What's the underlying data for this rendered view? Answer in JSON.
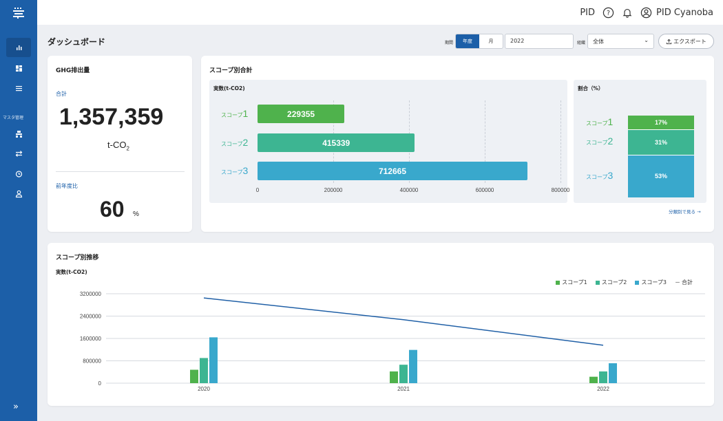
{
  "app": {
    "brand": "PID",
    "user": "PID Cyanoba"
  },
  "sidebar": {
    "section_label": "マスタ管理",
    "icons": [
      "bar-chart-icon",
      "dashboard-icon",
      "list-icon",
      "building-icon",
      "transfer-icon",
      "clock-icon",
      "user-icon"
    ]
  },
  "header": {
    "title": "ダッシュボード",
    "period_label": "期間",
    "period_options": [
      "年度",
      "月"
    ],
    "period_selected": "年度",
    "year_value": "2022",
    "org_label": "組織",
    "org_value": "全体",
    "export_label": "エクスポート"
  },
  "ghg": {
    "title": "GHG排出量",
    "total_label": "合計",
    "total_value": "1,357,359",
    "unit": "t-CO",
    "unit_sub": "2",
    "yoy_label": "前年度比",
    "yoy_value": "60",
    "yoy_unit": "%"
  },
  "scope_total": {
    "title": "スコープ別合計",
    "panel_title": "実数(t-CO2)",
    "ratio_title": "割合（%）",
    "scope_prefix": "スコープ",
    "link": "分類別で見る →",
    "colors": {
      "scope1": "#4fb24c",
      "scope2": "#3db592",
      "scope3": "#39a8cc"
    }
  },
  "trend": {
    "title": "スコープ別推移",
    "subtitle": "実数(t-CO2)"
  },
  "chart_data": [
    {
      "type": "bar",
      "orientation": "horizontal",
      "categories": [
        "1",
        "2",
        "3"
      ],
      "values": [
        229355,
        415339,
        712665
      ],
      "data_labels": [
        "229355",
        "415339",
        "712665"
      ],
      "title": "実数(t-CO2)",
      "xlim": [
        0,
        800000
      ],
      "x_ticks": [
        "0",
        "200000",
        "400000",
        "600000",
        "800000"
      ],
      "grid": true
    },
    {
      "type": "bar",
      "orientation": "stacked",
      "categories": [
        "1",
        "2",
        "3"
      ],
      "values": [
        17,
        31,
        53
      ],
      "data_labels": [
        "17%",
        "31%",
        "53%"
      ],
      "title": "割合（%）"
    },
    {
      "type": "bar",
      "title": "実数(t-CO2)",
      "categories": [
        "2020",
        "2021",
        "2022"
      ],
      "series": [
        {
          "name": "スコープ1",
          "type": "bar",
          "values": [
            480000,
            420000,
            230000
          ]
        },
        {
          "name": "スコープ2",
          "type": "bar",
          "values": [
            900000,
            660000,
            420000
          ]
        },
        {
          "name": "スコープ3",
          "type": "bar",
          "values": [
            1640000,
            1190000,
            712665
          ]
        },
        {
          "name": "合計",
          "type": "line",
          "values": [
            3050000,
            2270000,
            1357359
          ]
        }
      ],
      "ylim": [
        0,
        3200000
      ],
      "y_ticks": [
        "0",
        "800000",
        "1600000",
        "2400000",
        "3200000"
      ],
      "legend": "top-right",
      "grid": true
    }
  ]
}
